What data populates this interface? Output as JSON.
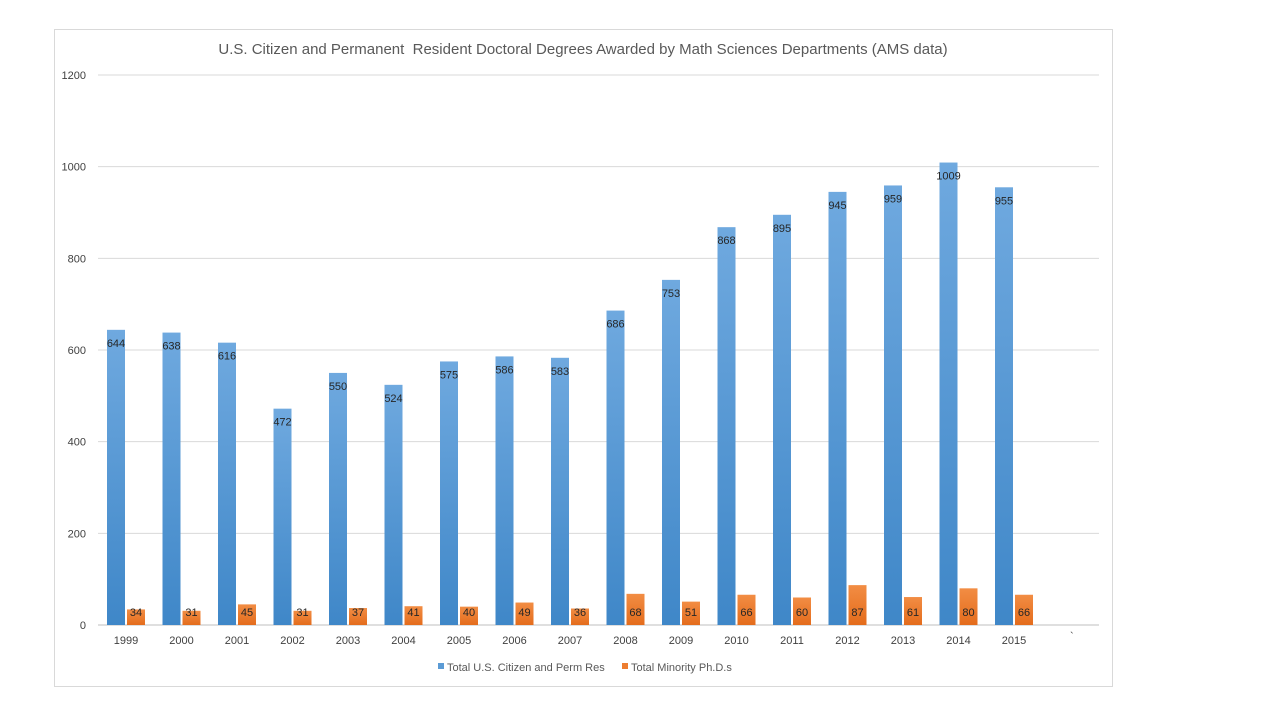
{
  "chart_data": {
    "type": "bar",
    "title": "U.S. Citizen and Permanent  Resident Doctoral Degrees Awarded by Math Sciences Departments (AMS data)",
    "xlabel": "",
    "ylabel": "",
    "categories": [
      "1999",
      "2000",
      "2001",
      "2002",
      "2003",
      "2004",
      "2005",
      "2006",
      "2007",
      "2008",
      "2009",
      "2010",
      "2011",
      "2012",
      "2013",
      "2014",
      "2015"
    ],
    "series": [
      {
        "name": "Total U.S. Citizen and Perm Res",
        "color": "#5b9bd5",
        "values": [
          644,
          638,
          616,
          472,
          550,
          524,
          575,
          586,
          583,
          686,
          753,
          868,
          895,
          945,
          959,
          1009,
          955
        ]
      },
      {
        "name": "Total Minority Ph.D.s",
        "color": "#ed7d31",
        "values": [
          34,
          31,
          45,
          31,
          37,
          41,
          40,
          49,
          36,
          68,
          51,
          66,
          60,
          87,
          61,
          80,
          66
        ]
      }
    ],
    "ylim": [
      0,
      1200
    ],
    "yticks": [
      0,
      200,
      400,
      600,
      800,
      1000,
      1200
    ],
    "grid": true,
    "legend": "bottom",
    "stray_mark": "`"
  }
}
